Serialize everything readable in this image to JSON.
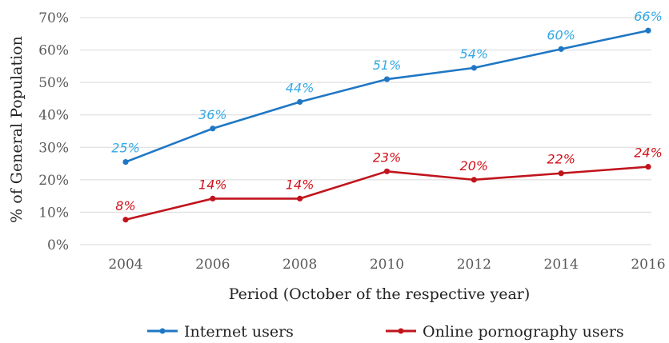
{
  "chart_data": {
    "type": "line",
    "title": "",
    "xlabel": "Period (October of the respective year)",
    "ylabel": "% of General Population",
    "x": [
      2004,
      2006,
      2008,
      2010,
      2012,
      2014,
      2016
    ],
    "ylim": [
      0,
      70
    ],
    "yticks": [
      0,
      10,
      20,
      30,
      40,
      50,
      60,
      70
    ],
    "ytick_labels": [
      "0%",
      "10%",
      "20%",
      "30%",
      "40%",
      "50%",
      "60%",
      "70%"
    ],
    "xtick_labels": [
      "2004",
      "2006",
      "2008",
      "2010",
      "2012",
      "2014",
      "2016"
    ],
    "grid": "horizontal",
    "legend_position": "bottom",
    "series": [
      {
        "name": "Internet users",
        "color": "#1f77c4",
        "label_color": "#33a9e6",
        "values": [
          25.5,
          35.8,
          44,
          51,
          54.5,
          60.3,
          66
        ],
        "labels": [
          "25%",
          "36%",
          "44%",
          "51%",
          "54%",
          "60%",
          "66%"
        ]
      },
      {
        "name": "Online pornography users",
        "color": "#c0141c",
        "label_color": "#d0111a",
        "values": [
          7.7,
          14.2,
          14.2,
          22.6,
          20,
          22,
          24
        ],
        "labels": [
          "8%",
          "14%",
          "14%",
          "23%",
          "20%",
          "22%",
          "24%"
        ]
      }
    ]
  }
}
